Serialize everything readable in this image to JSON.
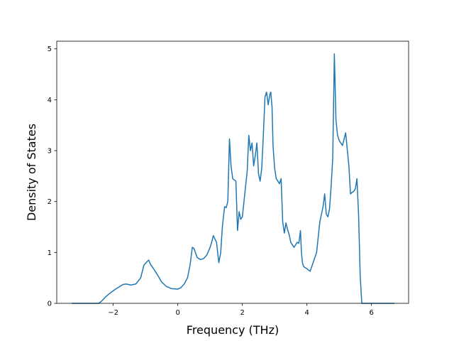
{
  "chart_data": {
    "type": "line",
    "title": "",
    "xlabel": "Frequency (THz)",
    "ylabel": "Density of States",
    "xlim": [
      -3.75,
      7.15
    ],
    "ylim": [
      0,
      5.15
    ],
    "grid": false,
    "x_ticks": [
      -2,
      0,
      2,
      4,
      6
    ],
    "x_tick_labels": [
      "−2",
      "0",
      "2",
      "4",
      "6"
    ],
    "y_ticks": [
      0,
      1,
      2,
      3,
      4,
      5
    ],
    "y_tick_labels": [
      "0",
      "1",
      "2",
      "3",
      "4",
      "5"
    ],
    "colors": {
      "series": "#1f77b4"
    },
    "series": [
      {
        "x": [
          -3.27,
          -2.6,
          -2.45,
          -2.35,
          -2.25,
          -2.1,
          -1.95,
          -1.8,
          -1.7,
          -1.6,
          -1.45,
          -1.3,
          -1.15,
          -1.05,
          -0.95,
          -0.9,
          -0.85,
          -0.75,
          -0.65,
          -0.5,
          -0.35,
          -0.2,
          0.0,
          0.1,
          0.2,
          0.3,
          0.38,
          0.45,
          0.5,
          0.6,
          0.7,
          0.8,
          0.9,
          1.0,
          1.05,
          1.1,
          1.2,
          1.27,
          1.33,
          1.38,
          1.45,
          1.5,
          1.55,
          1.6,
          1.65,
          1.7,
          1.8,
          1.85,
          1.9,
          1.95,
          2.0,
          2.05,
          2.1,
          2.15,
          2.2,
          2.25,
          2.3,
          2.35,
          2.4,
          2.45,
          2.5,
          2.55,
          2.6,
          2.65,
          2.7,
          2.75,
          2.8,
          2.85,
          2.88,
          2.92,
          2.95,
          3.0,
          3.05,
          3.1,
          3.15,
          3.2,
          3.25,
          3.3,
          3.35,
          3.4,
          3.45,
          3.5,
          3.55,
          3.6,
          3.7,
          3.75,
          3.8,
          3.83,
          3.86,
          3.9,
          3.95,
          4.0,
          4.1,
          4.3,
          4.4,
          4.45,
          4.5,
          4.55,
          4.6,
          4.65,
          4.7,
          4.75,
          4.8,
          4.85,
          4.9,
          4.95,
          5.0,
          5.05,
          5.1,
          5.2,
          5.3,
          5.35,
          5.4,
          5.45,
          5.5,
          5.55,
          5.6,
          5.65,
          5.7,
          5.75,
          5.8,
          5.85,
          5.9,
          6.0,
          6.7
        ],
        "y": [
          0,
          0,
          0,
          0.05,
          0.12,
          0.2,
          0.27,
          0.33,
          0.37,
          0.38,
          0.36,
          0.38,
          0.5,
          0.75,
          0.82,
          0.85,
          0.77,
          0.68,
          0.58,
          0.42,
          0.33,
          0.29,
          0.28,
          0.31,
          0.38,
          0.5,
          0.75,
          1.1,
          1.08,
          0.9,
          0.86,
          0.88,
          0.95,
          1.1,
          1.2,
          1.33,
          1.2,
          0.8,
          1.0,
          1.5,
          1.9,
          1.88,
          2.0,
          3.23,
          2.7,
          2.45,
          2.4,
          1.43,
          1.8,
          1.65,
          1.7,
          2.0,
          2.3,
          2.6,
          3.3,
          3.0,
          3.15,
          2.7,
          2.9,
          3.15,
          2.55,
          2.4,
          2.65,
          3.3,
          4.05,
          4.15,
          3.9,
          4.1,
          4.15,
          3.85,
          3.1,
          2.65,
          2.45,
          2.4,
          2.35,
          2.45,
          1.6,
          1.38,
          1.58,
          1.45,
          1.35,
          1.2,
          1.15,
          1.1,
          1.2,
          1.18,
          1.43,
          1.0,
          0.8,
          0.72,
          0.7,
          0.68,
          0.63,
          1.0,
          1.6,
          1.75,
          1.9,
          2.15,
          1.75,
          1.7,
          1.85,
          2.3,
          2.85,
          4.9,
          3.6,
          3.3,
          3.2,
          3.15,
          3.1,
          3.35,
          2.7,
          2.15,
          2.18,
          2.2,
          2.25,
          2.45,
          1.75,
          0.55,
          0.0,
          0.0,
          0.0,
          0.0,
          0.0,
          0.0,
          0.0
        ]
      }
    ]
  }
}
